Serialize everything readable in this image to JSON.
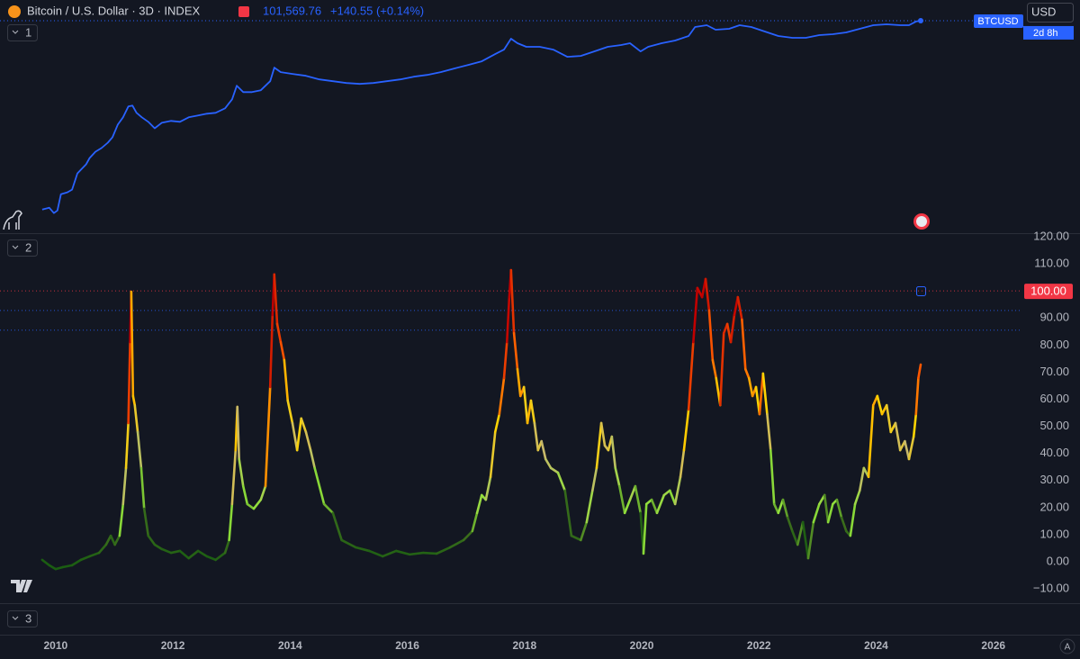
{
  "ui": {
    "currency": "USD",
    "panes": [
      "1",
      "2",
      "3"
    ],
    "scale_mode": "A"
  },
  "chart_data": [
    {
      "type": "line",
      "title": "Bitcoin / U.S. Dollar · 3D · INDEX",
      "last_price": {
        "value": 101569.76,
        "label": "101,569.76"
      },
      "change": "+140.55 (+0.14%)",
      "series_label": "BTCUSD",
      "countdown": "2d 8h",
      "color": "#2962ff",
      "log_scale": true,
      "xlim": [
        2009.05,
        2026.48
      ],
      "ylim": [
        0.0002,
        200000
      ],
      "x": [
        2009.77,
        2009.89,
        2009.97,
        2010.03,
        2010.09,
        2010.2,
        2010.28,
        2010.37,
        2010.43,
        2010.52,
        2010.58,
        2010.68,
        2010.78,
        2010.89,
        2010.97,
        2011.06,
        2011.15,
        2011.24,
        2011.31,
        2011.38,
        2011.47,
        2011.58,
        2011.69,
        2011.81,
        2011.97,
        2012.12,
        2012.27,
        2012.43,
        2012.58,
        2012.73,
        2012.89,
        2013.01,
        2013.09,
        2013.2,
        2013.35,
        2013.5,
        2013.66,
        2013.73,
        2013.84,
        2014.04,
        2014.27,
        2014.5,
        2014.73,
        2014.96,
        2015.19,
        2015.42,
        2015.65,
        2015.88,
        2016.11,
        2016.34,
        2016.57,
        2016.8,
        2017.04,
        2017.27,
        2017.5,
        2017.65,
        2017.77,
        2017.88,
        2018.03,
        2018.26,
        2018.49,
        2018.73,
        2018.96,
        2019.19,
        2019.42,
        2019.65,
        2019.8,
        2019.98,
        2020.11,
        2020.34,
        2020.57,
        2020.8,
        2020.91,
        2021.11,
        2021.26,
        2021.49,
        2021.67,
        2021.87,
        2022.1,
        2022.33,
        2022.57,
        2022.8,
        2023.03,
        2023.26,
        2023.49,
        2023.72,
        2023.95,
        2024.18,
        2024.41,
        2024.56,
        2024.68,
        2024.76
      ],
      "values": [
        0.00173,
        0.00205,
        0.00123,
        0.00158,
        0.0074,
        0.0088,
        0.0114,
        0.053,
        0.075,
        0.125,
        0.227,
        0.414,
        0.58,
        0.97,
        1.63,
        5.4,
        10.7,
        29.9,
        32.6,
        16.4,
        10.7,
        7.0,
        3.8,
        6.4,
        7.6,
        7.0,
        10.7,
        12.7,
        15.1,
        16.4,
        25.2,
        59.3,
        214,
        117,
        117,
        140,
        328,
        1186,
        773,
        652,
        548,
        390,
        328,
        277,
        254,
        277,
        328,
        390,
        504,
        598,
        773,
        1089,
        1531,
        2158,
        4285,
        6561,
        18365,
        11967,
        8490,
        8490,
        6561,
        3311,
        3606,
        5534,
        8490,
        10069,
        11967,
        5534,
        8490,
        11967,
        15453,
        23714,
        55847,
        66222,
        43152,
        46989,
        66222,
        55847,
        36392,
        23714,
        20000,
        20000,
        25823,
        28119,
        33420,
        46989,
        66222,
        72111,
        66222,
        66222,
        93325,
        101569.76
      ]
    },
    {
      "type": "line",
      "xlim": [
        2009.05,
        2026.48
      ],
      "xticks": [
        2010,
        2012,
        2014,
        2016,
        2018,
        2020,
        2022,
        2024,
        2026
      ],
      "ylim": [
        -15.3,
        121
      ],
      "yticks": [
        {
          "value": -10,
          "label": "−10.00"
        },
        {
          "value": 0,
          "label": "0.00"
        },
        {
          "value": 10,
          "label": "10.00"
        },
        {
          "value": 20,
          "label": "20.00"
        },
        {
          "value": 30,
          "label": "30.00"
        },
        {
          "value": 40,
          "label": "40.00"
        },
        {
          "value": 50,
          "label": "50.00"
        },
        {
          "value": 60,
          "label": "60.00"
        },
        {
          "value": 70,
          "label": "70.00"
        },
        {
          "value": 80,
          "label": "80.00"
        },
        {
          "value": 90,
          "label": "90.00"
        },
        {
          "value": 110,
          "label": "110.00"
        },
        {
          "value": 120,
          "label": "120.00"
        }
      ],
      "reference_lines": [
        {
          "value": 100,
          "label": "100.00",
          "color": "#f23645"
        },
        {
          "value": 92.8,
          "color": "#2962ff"
        },
        {
          "value": 85.5,
          "color": "#2962ff"
        }
      ],
      "color_stops": [
        {
          "value": 0,
          "color": "#1b5e12"
        },
        {
          "value": 12,
          "color": "#3c6e1c"
        },
        {
          "value": 22,
          "color": "#8fe03a"
        },
        {
          "value": 38,
          "color": "#c8b96a"
        },
        {
          "value": 55,
          "color": "#ffd400"
        },
        {
          "value": 72,
          "color": "#ff5a00"
        },
        {
          "value": 100,
          "color": "#c00000"
        }
      ],
      "x": [
        2009.77,
        2009.89,
        2010.0,
        2010.12,
        2010.28,
        2010.43,
        2010.58,
        2010.74,
        2010.86,
        2010.94,
        2011.01,
        2011.09,
        2011.15,
        2011.2,
        2011.24,
        2011.27,
        2011.29,
        2011.32,
        2011.35,
        2011.4,
        2011.46,
        2011.51,
        2011.58,
        2011.69,
        2011.81,
        2011.97,
        2012.12,
        2012.27,
        2012.43,
        2012.58,
        2012.73,
        2012.89,
        2012.96,
        2013.01,
        2013.07,
        2013.1,
        2013.13,
        2013.2,
        2013.27,
        2013.38,
        2013.5,
        2013.58,
        2013.66,
        2013.7,
        2013.73,
        2013.78,
        2013.84,
        2013.9,
        2013.96,
        2014.04,
        2014.12,
        2014.19,
        2014.27,
        2014.35,
        2014.42,
        2014.58,
        2014.73,
        2014.88,
        2015.12,
        2015.35,
        2015.58,
        2015.81,
        2016.04,
        2016.27,
        2016.5,
        2016.73,
        2016.96,
        2017.11,
        2017.19,
        2017.27,
        2017.34,
        2017.42,
        2017.5,
        2017.57,
        2017.65,
        2017.7,
        2017.74,
        2017.77,
        2017.82,
        2017.88,
        2017.93,
        2017.99,
        2018.05,
        2018.11,
        2018.17,
        2018.23,
        2018.29,
        2018.36,
        2018.45,
        2018.57,
        2018.69,
        2018.8,
        2018.96,
        2019.06,
        2019.16,
        2019.23,
        2019.31,
        2019.37,
        2019.43,
        2019.49,
        2019.55,
        2019.62,
        2019.71,
        2019.8,
        2019.89,
        2019.98,
        2020.03,
        2020.08,
        2020.17,
        2020.26,
        2020.38,
        2020.48,
        2020.57,
        2020.66,
        2020.72,
        2020.8,
        2020.88,
        2020.95,
        2021.03,
        2021.09,
        2021.15,
        2021.21,
        2021.27,
        2021.34,
        2021.4,
        2021.46,
        2021.52,
        2021.58,
        2021.64,
        2021.71,
        2021.77,
        2021.83,
        2021.89,
        2021.95,
        2022.01,
        2022.07,
        2022.14,
        2022.2,
        2022.26,
        2022.33,
        2022.41,
        2022.49,
        2022.57,
        2022.66,
        2022.75,
        2022.84,
        2022.93,
        2023.03,
        2023.12,
        2023.18,
        2023.26,
        2023.33,
        2023.41,
        2023.49,
        2023.56,
        2023.64,
        2023.72,
        2023.79,
        2023.87,
        2023.95,
        2024.02,
        2024.1,
        2024.18,
        2024.25,
        2024.33,
        2024.41,
        2024.49,
        2024.56,
        2024.64,
        2024.68,
        2024.72,
        2024.76
      ],
      "values": [
        0.7,
        -1.3,
        -2.7,
        -2.0,
        -1.3,
        0.7,
        2.0,
        3.3,
        6.3,
        9.6,
        6.3,
        9.6,
        21.3,
        34.6,
        51.2,
        81.1,
        99.7,
        61.2,
        57.8,
        47.9,
        34.6,
        19.6,
        9.6,
        6.3,
        4.7,
        3.3,
        4.0,
        1.3,
        4.0,
        2.0,
        0.7,
        3.3,
        8.0,
        21.3,
        41.2,
        57.2,
        37.9,
        27.9,
        21.3,
        19.6,
        22.9,
        27.9,
        64.5,
        91.1,
        106.1,
        87.8,
        81.1,
        74.5,
        59.5,
        51.2,
        41.2,
        52.9,
        47.9,
        41.2,
        34.6,
        21.3,
        18.0,
        8.0,
        5.3,
        4.0,
        2.0,
        4.0,
        2.7,
        3.3,
        3.0,
        5.3,
        8.0,
        11.3,
        18.0,
        24.6,
        22.9,
        31.3,
        47.9,
        54.5,
        67.8,
        81.1,
        97.7,
        107.7,
        84.4,
        71.1,
        61.2,
        64.5,
        51.2,
        59.5,
        51.2,
        41.2,
        44.5,
        37.9,
        34.6,
        32.9,
        26.3,
        9.6,
        8.0,
        14.6,
        26.3,
        34.6,
        51.2,
        42.9,
        41.2,
        46.2,
        34.6,
        27.9,
        18.0,
        22.9,
        27.9,
        18.0,
        3.0,
        21.3,
        22.9,
        18.0,
        24.6,
        26.3,
        21.3,
        31.3,
        41.2,
        56.2,
        81.1,
        101.1,
        97.7,
        104.4,
        92.8,
        74.5,
        67.8,
        57.8,
        84.4,
        87.8,
        81.1,
        91.1,
        97.7,
        89.4,
        71.1,
        67.8,
        61.2,
        64.5,
        54.5,
        69.5,
        54.5,
        41.2,
        21.3,
        18.0,
        22.9,
        16.3,
        11.3,
        6.3,
        14.6,
        1.3,
        14.6,
        21.3,
        24.6,
        14.6,
        21.3,
        22.9,
        16.3,
        11.3,
        9.6,
        21.3,
        26.3,
        34.6,
        31.3,
        57.8,
        61.2,
        54.5,
        57.8,
        47.9,
        51.2,
        41.2,
        44.5,
        37.9,
        46.2,
        54.5,
        67.8,
        72.8
      ]
    }
  ]
}
